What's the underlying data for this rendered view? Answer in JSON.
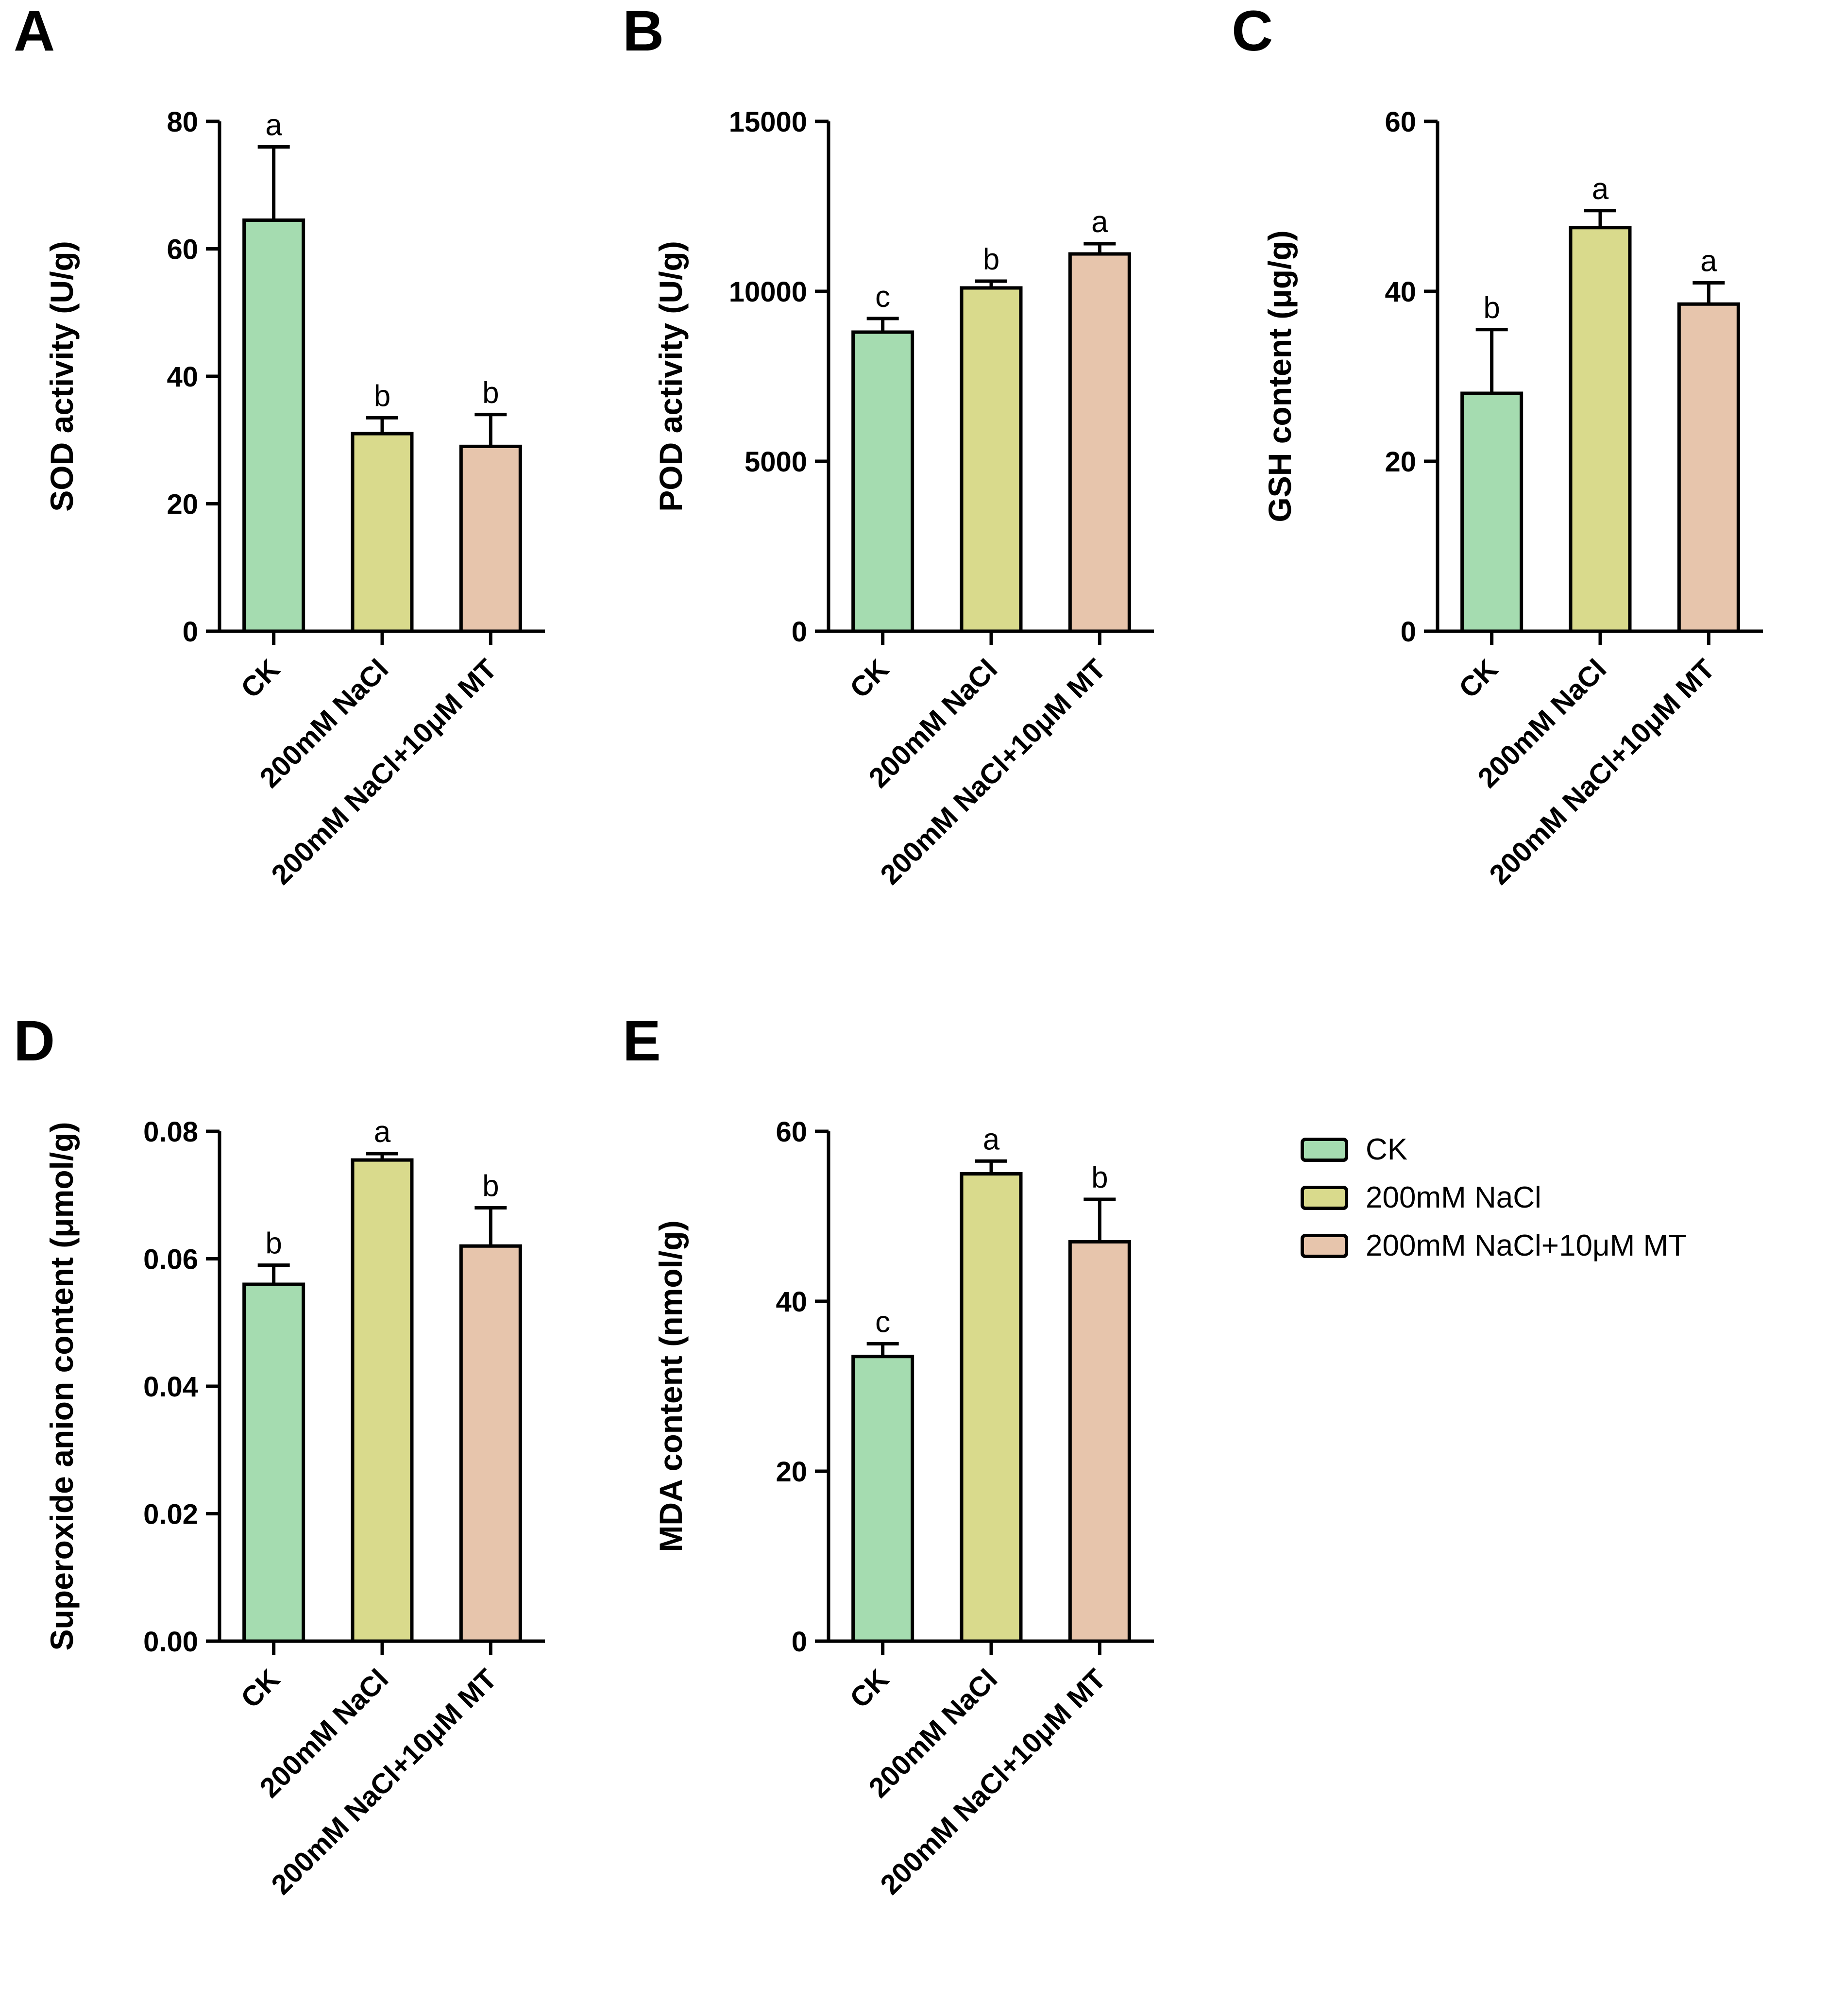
{
  "colors": {
    "ck": "#a5dcb0",
    "nacl": "#d9da8c",
    "nacl_mt": "#e7c5ac",
    "axis": "#000000"
  },
  "legend": {
    "position": "right-middle",
    "items": [
      {
        "label": "CK",
        "color": "#a5dcb0"
      },
      {
        "label": "200mM NaCl",
        "color": "#d9da8c"
      },
      {
        "label": "200mM NaCl+10μM MT",
        "color": "#e7c5ac"
      }
    ]
  },
  "chart_data": [
    {
      "type": "bar",
      "letter": "A",
      "title": "",
      "xlabel": "",
      "ylabel": "SOD activity (U/g)",
      "ylim": [
        0,
        80
      ],
      "yticks": [
        0,
        20,
        40,
        60,
        80
      ],
      "ytick_labels": [
        "0",
        "20",
        "40",
        "60",
        "80"
      ],
      "categories": [
        "CK",
        "200mM NaCl",
        "200mM NaCl+10μM MT"
      ],
      "values": [
        64.5,
        31,
        29
      ],
      "errors": [
        11.5,
        2.5,
        5
      ],
      "sig_letters": [
        "a",
        "b",
        "b"
      ],
      "bar_colors": [
        "#a5dcb0",
        "#d9da8c",
        "#e7c5ac"
      ],
      "grid": false,
      "legend_position": "none"
    },
    {
      "type": "bar",
      "letter": "B",
      "title": "",
      "xlabel": "",
      "ylabel": "POD activity (U/g)",
      "ylim": [
        0,
        15000
      ],
      "yticks": [
        0,
        5000,
        10000,
        15000
      ],
      "ytick_labels": [
        "0",
        "5000",
        "10000",
        "15000"
      ],
      "categories": [
        "CK",
        "200mM NaCl",
        "200mM NaCl+10μM MT"
      ],
      "values": [
        8800,
        10100,
        11100
      ],
      "errors": [
        400,
        200,
        300
      ],
      "sig_letters": [
        "c",
        "b",
        "a"
      ],
      "bar_colors": [
        "#a5dcb0",
        "#d9da8c",
        "#e7c5ac"
      ],
      "grid": false,
      "legend_position": "none"
    },
    {
      "type": "bar",
      "letter": "C",
      "title": "",
      "xlabel": "",
      "ylabel": "GSH content (μg/g)",
      "ylim": [
        0,
        60
      ],
      "yticks": [
        0,
        20,
        40,
        60
      ],
      "ytick_labels": [
        "0",
        "20",
        "40",
        "60"
      ],
      "categories": [
        "CK",
        "200mM NaCl",
        "200mM NaCl+10μM MT"
      ],
      "values": [
        28,
        47.5,
        38.5
      ],
      "errors": [
        7.5,
        2,
        2.5
      ],
      "sig_letters": [
        "b",
        "a",
        "a"
      ],
      "bar_colors": [
        "#a5dcb0",
        "#d9da8c",
        "#e7c5ac"
      ],
      "grid": false,
      "legend_position": "none"
    },
    {
      "type": "bar",
      "letter": "D",
      "title": "",
      "xlabel": "",
      "ylabel": "Superoxide anion content (μmol/g)",
      "ylim": [
        0,
        0.08
      ],
      "yticks": [
        0,
        0.02,
        0.04,
        0.06,
        0.08
      ],
      "ytick_labels": [
        "0.00",
        "0.02",
        "0.04",
        "0.06",
        "0.08"
      ],
      "categories": [
        "CK",
        "200mM NaCl",
        "200mM NaCl+10μM MT"
      ],
      "values": [
        0.056,
        0.0755,
        0.062
      ],
      "errors": [
        0.003,
        0.001,
        0.006
      ],
      "sig_letters": [
        "b",
        "a",
        "b"
      ],
      "bar_colors": [
        "#a5dcb0",
        "#d9da8c",
        "#e7c5ac"
      ],
      "grid": false,
      "legend_position": "none"
    },
    {
      "type": "bar",
      "letter": "E",
      "title": "",
      "xlabel": "",
      "ylabel": "MDA content (nmol/g)",
      "ylim": [
        0,
        60
      ],
      "yticks": [
        0,
        20,
        40,
        60
      ],
      "ytick_labels": [
        "0",
        "20",
        "40",
        "60"
      ],
      "categories": [
        "CK",
        "200mM NaCl",
        "200mM NaCl+10μM MT"
      ],
      "values": [
        33.5,
        55,
        47
      ],
      "errors": [
        1.5,
        1.5,
        5
      ],
      "sig_letters": [
        "c",
        "a",
        "b"
      ],
      "bar_colors": [
        "#a5dcb0",
        "#d9da8c",
        "#e7c5ac"
      ],
      "grid": false,
      "legend_position": "none"
    }
  ]
}
